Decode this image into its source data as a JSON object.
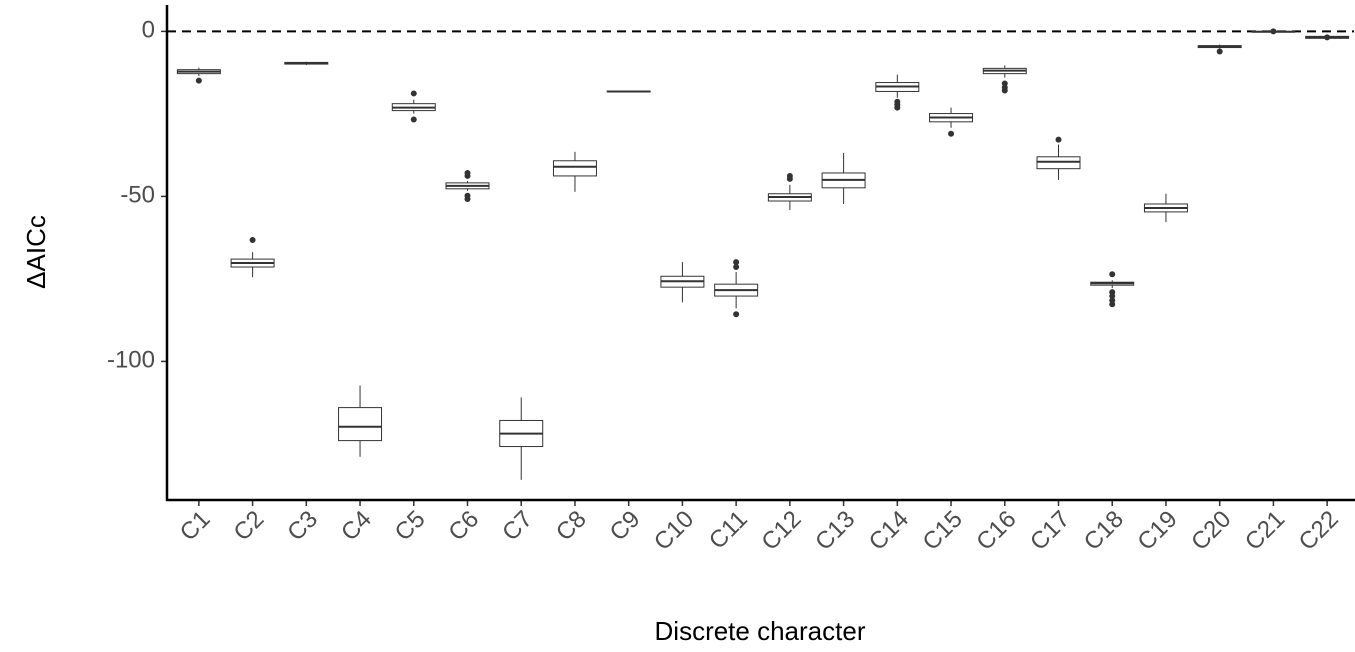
{
  "chart_data": {
    "type": "box",
    "x_label": "Discrete character",
    "y_label": "ΔAICc",
    "categories": [
      "C1",
      "C2",
      "C3",
      "C4",
      "C5",
      "C6",
      "C7",
      "C8",
      "C9",
      "C10",
      "C11",
      "C12",
      "C13",
      "C14",
      "C15",
      "C16",
      "C17",
      "C18",
      "C19",
      "C20",
      "C21",
      "C22"
    ],
    "boxes": [
      {
        "min": -13.5,
        "q1": -12.8,
        "median": -12.2,
        "q3": -11.6,
        "max": -11,
        "outliers": [
          -14.9
        ]
      },
      {
        "min": -74.5,
        "q1": -71.4,
        "median": -70.2,
        "q3": -69,
        "max": -66.9,
        "outliers": [
          -63.2
        ]
      },
      {
        "min": -10.2,
        "q1": -9.9,
        "median": -9.6,
        "q3": -9.4,
        "max": -9.2,
        "outliers": []
      },
      {
        "min": -128.9,
        "q1": -124,
        "median": -119.8,
        "q3": -114,
        "max": -107.3,
        "outliers": []
      },
      {
        "min": -24.9,
        "q1": -24,
        "median": -23.1,
        "q3": -21.9,
        "max": -20.7,
        "outliers": [
          -18.8,
          -26.7
        ]
      },
      {
        "min": -48.3,
        "q1": -47.7,
        "median": -46.8,
        "q3": -45.9,
        "max": -45.3,
        "outliers": [
          -42.9,
          -43.8,
          -49.8,
          -50.8
        ]
      },
      {
        "min": -135.9,
        "q1": -125.8,
        "median": -121.9,
        "q3": -117.9,
        "max": -110.9,
        "outliers": []
      },
      {
        "min": -48.6,
        "q1": -43.8,
        "median": -41,
        "q3": -39.2,
        "max": -36.5,
        "outliers": []
      },
      {
        "min": -18.4,
        "q1": -18.3,
        "median": -18.2,
        "q3": -18.1,
        "max": -18,
        "outliers": []
      },
      {
        "min": -82.1,
        "q1": -77.5,
        "median": -75.7,
        "q3": -74.2,
        "max": -69.9,
        "outliers": []
      },
      {
        "min": -83.9,
        "q1": -80.2,
        "median": -78.4,
        "q3": -76.6,
        "max": -72.9,
        "outliers": [
          -69.9,
          -71.4,
          -85.7
        ]
      },
      {
        "min": -54.1,
        "q1": -51.4,
        "median": -50.2,
        "q3": -49.2,
        "max": -46.5,
        "outliers": [
          -43.8,
          -44.7
        ]
      },
      {
        "min": -52.3,
        "q1": -47.4,
        "median": -45,
        "q3": -42.9,
        "max": -36.8,
        "outliers": []
      },
      {
        "min": -20.1,
        "q1": -18.2,
        "median": -16.7,
        "q3": -15.5,
        "max": -13.1,
        "outliers": [
          -21.3,
          -22.2,
          -23.1
        ]
      },
      {
        "min": -29.2,
        "q1": -27.4,
        "median": -26.1,
        "q3": -24.9,
        "max": -23.1,
        "outliers": [
          -31
        ]
      },
      {
        "min": -14,
        "q1": -12.8,
        "median": -11.9,
        "q3": -11.2,
        "max": -10.3,
        "outliers": [
          -15.8,
          -17,
          -17.9
        ]
      },
      {
        "min": -45,
        "q1": -41.6,
        "median": -39.5,
        "q3": -38,
        "max": -34.3,
        "outliers": [
          -32.8
        ]
      },
      {
        "min": -77.8,
        "q1": -76.9,
        "median": -76.3,
        "q3": -76,
        "max": -75.4,
        "outliers": [
          -73.6,
          -79,
          -80.2,
          -81.5,
          -82.7
        ]
      },
      {
        "min": -57.8,
        "q1": -54.7,
        "median": -53.5,
        "q3": -52.3,
        "max": -49.2,
        "outliers": []
      },
      {
        "min": -5.2,
        "q1": -4.9,
        "median": -4.6,
        "q3": -4.3,
        "max": -4,
        "outliers": [
          -6.1
        ]
      },
      {
        "min": -0.3,
        "q1": -0.2,
        "median": -0.1,
        "q3": 0,
        "max": 0.1,
        "outliers": [
          0
        ]
      },
      {
        "min": -2.2,
        "q1": -2.1,
        "median": -1.8,
        "q3": -1.5,
        "max": -1.4,
        "outliers": [
          -1.8
        ]
      }
    ],
    "reference_line": 0,
    "ylim": [
      -142,
      8
    ],
    "yticks": [
      -100,
      -50,
      0
    ]
  }
}
